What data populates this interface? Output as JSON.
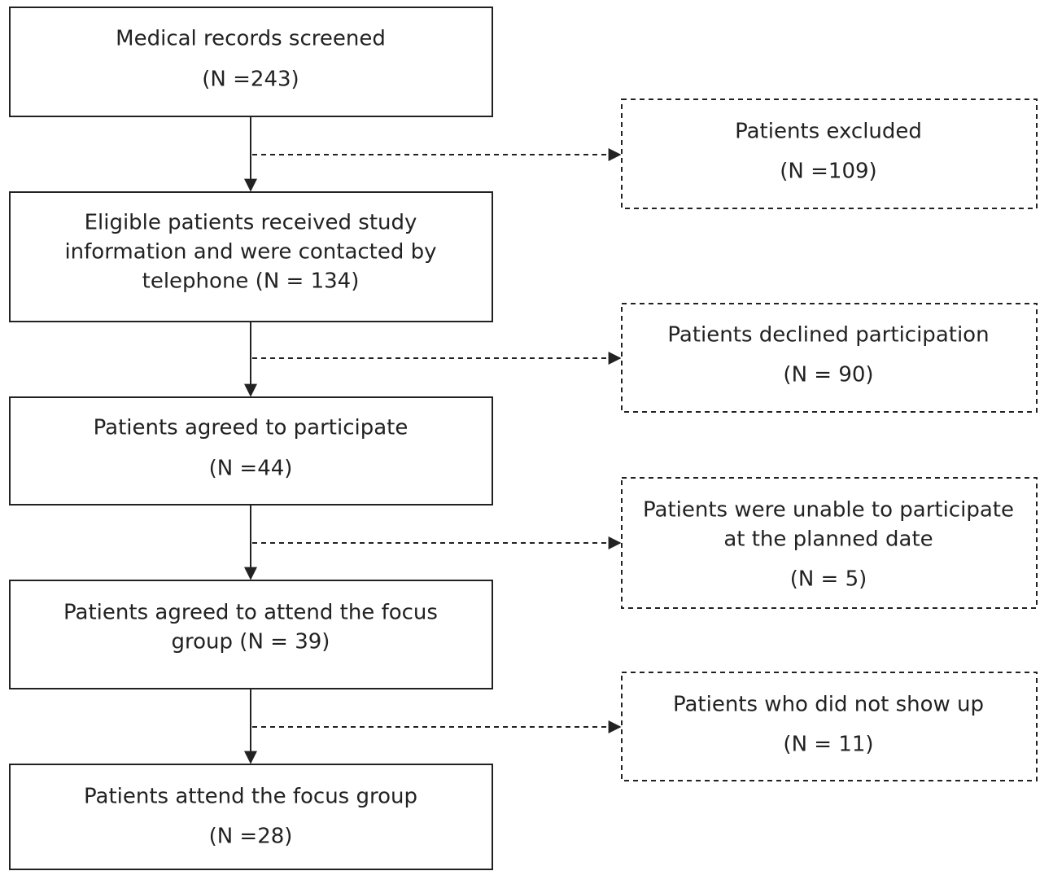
{
  "main_boxes": [
    {
      "lines": [
        "Medical records screened",
        "(N =243)"
      ]
    },
    {
      "lines": [
        "Eligible patients received study",
        "information and were contacted by",
        "telephone (N = 134)"
      ]
    },
    {
      "lines": [
        "Patients agreed to participate",
        "(N =44)"
      ]
    },
    {
      "lines": [
        "Patients agreed to attend the focus",
        "group (N = 39)"
      ]
    },
    {
      "lines": [
        "Patients attend the focus group",
        "(N =28)"
      ]
    }
  ],
  "exclusion_boxes": [
    {
      "lines": [
        "Patients excluded",
        "(N =109)"
      ]
    },
    {
      "lines": [
        "Patients declined participation",
        "(N = 90)"
      ]
    },
    {
      "lines": [
        "Patients were unable to participate",
        "at the planned date",
        "(N = 5)"
      ]
    },
    {
      "lines": [
        "Patients who did not show up",
        "(N = 11)"
      ]
    }
  ]
}
